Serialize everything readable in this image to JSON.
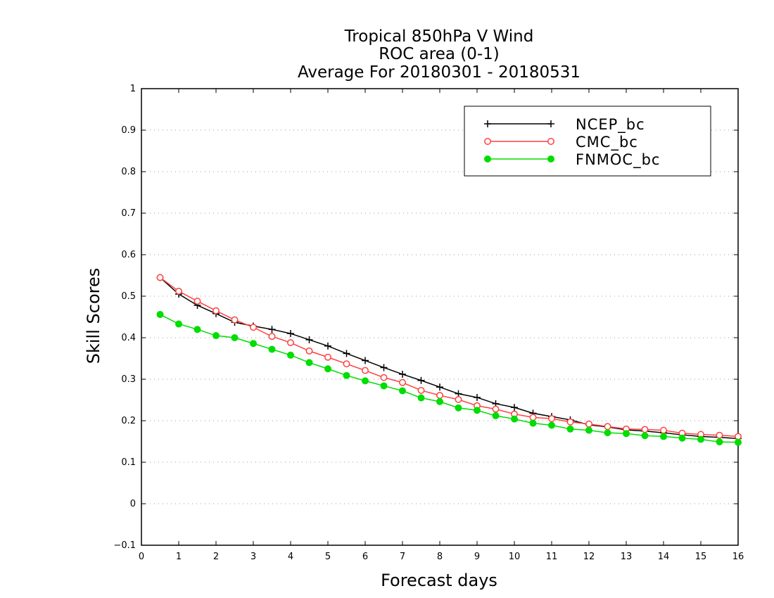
{
  "chart_data": {
    "type": "line",
    "title_lines": [
      "Tropical 850hPa V Wind",
      "ROC area (0-1)",
      "Average For 20180301 - 20180531"
    ],
    "xlabel": "Forecast days",
    "ylabel": "Skill Scores",
    "xlim": [
      0,
      16
    ],
    "ylim": [
      -0.1,
      1
    ],
    "xticks": [
      "0",
      "1",
      "2",
      "3",
      "4",
      "5",
      "6",
      "7",
      "8",
      "9",
      "10",
      "11",
      "12",
      "13",
      "14",
      "15",
      "16"
    ],
    "yticks": [
      "−0.1",
      "0",
      "0.1",
      "0.2",
      "0.3",
      "0.4",
      "0.5",
      "0.6",
      "0.7",
      "0.8",
      "0.9",
      "1"
    ],
    "grid": "horizontal dotted",
    "legend_position": "top-right",
    "x": [
      0.5,
      1,
      1.5,
      2,
      2.5,
      3,
      3.5,
      4,
      4.5,
      5,
      5.5,
      6,
      6.5,
      7,
      7.5,
      8,
      8.5,
      9,
      9.5,
      10,
      10.5,
      11,
      11.5,
      12,
      12.5,
      13,
      13.5,
      14,
      14.5,
      15,
      15.5,
      16
    ],
    "series": [
      {
        "name": "NCEP_bc",
        "color": "#000000",
        "marker": "plus",
        "values": [
          0.545,
          0.505,
          0.478,
          0.458,
          0.437,
          0.428,
          0.42,
          0.41,
          0.395,
          0.38,
          0.362,
          0.345,
          0.328,
          0.312,
          0.297,
          0.281,
          0.265,
          0.256,
          0.241,
          0.232,
          0.218,
          0.21,
          0.202,
          0.19,
          0.185,
          0.178,
          0.175,
          0.171,
          0.166,
          0.162,
          0.16,
          0.157
        ]
      },
      {
        "name": "CMC_bc",
        "color": "#ff4040",
        "marker": "open-circle",
        "values": [
          0.545,
          0.512,
          0.488,
          0.465,
          0.443,
          0.425,
          0.403,
          0.388,
          0.368,
          0.353,
          0.337,
          0.321,
          0.304,
          0.292,
          0.273,
          0.261,
          0.251,
          0.236,
          0.228,
          0.216,
          0.208,
          0.205,
          0.197,
          0.192,
          0.186,
          0.18,
          0.179,
          0.177,
          0.17,
          0.167,
          0.165,
          0.162
        ]
      },
      {
        "name": "FNMOC_bc",
        "color": "#00dd00",
        "marker": "filled-circle",
        "values": [
          0.456,
          0.433,
          0.42,
          0.405,
          0.4,
          0.386,
          0.372,
          0.358,
          0.34,
          0.325,
          0.309,
          0.296,
          0.284,
          0.272,
          0.255,
          0.246,
          0.231,
          0.225,
          0.212,
          0.204,
          0.194,
          0.189,
          0.18,
          0.177,
          0.171,
          0.169,
          0.164,
          0.162,
          0.158,
          0.155,
          0.149,
          0.148
        ]
      }
    ]
  }
}
